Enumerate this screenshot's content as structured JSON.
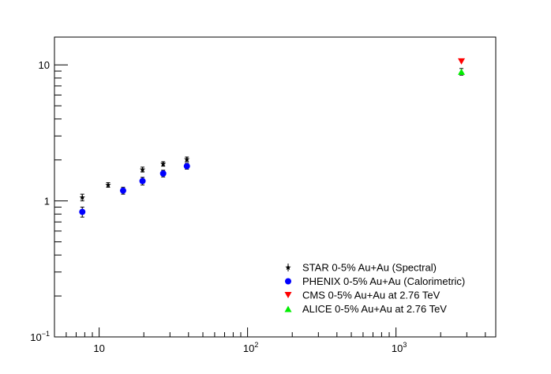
{
  "chart_data": {
    "type": "scatter",
    "title": "",
    "xlabel": "",
    "ylabel": "",
    "x_scale": "log",
    "y_scale": "log",
    "xlim": [
      5,
      4700
    ],
    "ylim": [
      0.1,
      16
    ],
    "x_ticks": [
      {
        "value": 10,
        "mantissa": "10",
        "exp": ""
      },
      {
        "value": 100,
        "mantissa": "10",
        "exp": "2"
      },
      {
        "value": 1000,
        "mantissa": "10",
        "exp": "3"
      }
    ],
    "y_ticks": [
      {
        "value": 0.1,
        "mantissa": "10",
        "exp": "−1"
      },
      {
        "value": 1,
        "mantissa": "1",
        "exp": ""
      },
      {
        "value": 10,
        "mantissa": "10",
        "exp": ""
      }
    ],
    "grid": false,
    "legend_position": "bottom-right",
    "series": [
      {
        "name": "STAR 0-5% Au+Au (Spectral)",
        "marker": "star",
        "color": "#000000",
        "points": [
          {
            "x": 7.7,
            "y": 1.06,
            "err": 0.06
          },
          {
            "x": 11.5,
            "y": 1.31,
            "err": 0.05
          },
          {
            "x": 19.6,
            "y": 1.7,
            "err": 0.07
          },
          {
            "x": 27,
            "y": 1.87,
            "err": 0.07
          },
          {
            "x": 39,
            "y": 2.02,
            "err": 0.08
          }
        ]
      },
      {
        "name": "PHENIX 0-5% Au+Au (Calorimetric)",
        "marker": "circle",
        "color": "#0000ff",
        "points": [
          {
            "x": 7.7,
            "y": 0.83,
            "err": 0.07
          },
          {
            "x": 14.5,
            "y": 1.19,
            "err": 0.07
          },
          {
            "x": 19.6,
            "y": 1.4,
            "err": 0.09
          },
          {
            "x": 27,
            "y": 1.59,
            "err": 0.09
          },
          {
            "x": 39,
            "y": 1.8,
            "err": 0.09
          }
        ]
      },
      {
        "name": "CMS 0-5% Au+Au at 2.76 TeV",
        "marker": "triangle-down",
        "color": "#ff0000",
        "points": [
          {
            "x": 2760,
            "y": 10.6,
            "err": 0.0
          }
        ]
      },
      {
        "name": "ALICE 0-5% Au+Au at 2.76 TeV",
        "marker": "triangle-up",
        "color": "#00ee00",
        "points": [
          {
            "x": 2760,
            "y": 8.9,
            "err": 0.5
          }
        ]
      }
    ]
  }
}
